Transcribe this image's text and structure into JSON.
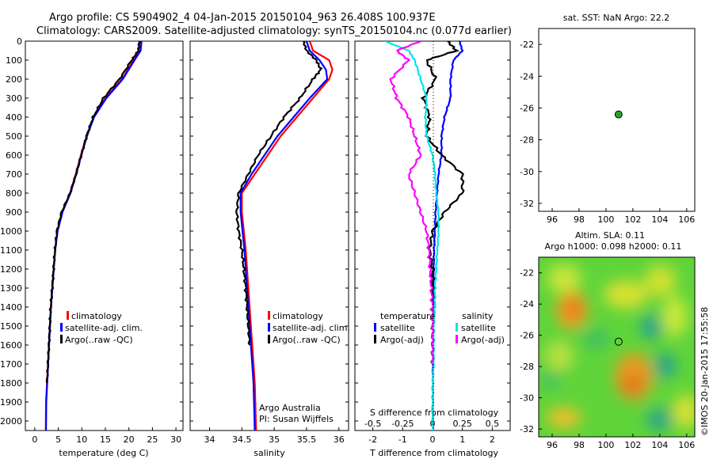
{
  "header": {
    "line1": "Argo profile: CS 5904902_4 04-Jan-2015 20150104_963 26.408S 100.937E",
    "line2": "Climatology: CARS2009. Satellite-adjusted climatology: synTS_20150104.nc (0.077d earlier)"
  },
  "depth_axis": {
    "ticks": [
      "0",
      "100",
      "200",
      "300",
      "400",
      "500",
      "600",
      "700",
      "800",
      "900",
      "1000",
      "1100",
      "1200",
      "1300",
      "1400",
      "1500",
      "1600",
      "1700",
      "1800",
      "1900",
      "2000"
    ]
  },
  "panels": {
    "temp": {
      "xlabel": "temperature (deg C)",
      "xticks": [
        "0",
        "5",
        "10",
        "15",
        "20",
        "25",
        "30"
      ],
      "legend": [
        "climatology",
        "satellite-adj. clim.",
        "Argo(..raw -QC)"
      ]
    },
    "sal": {
      "xlabel": "salinity",
      "xticks": [
        "34",
        "34.5",
        "35",
        "35.5",
        "36"
      ],
      "legend": [
        "climatology",
        "satellite-adj. clim.",
        "Argo(..raw -QC)"
      ],
      "credit1": "Argo Australia",
      "credit2": "PI: Susan Wijffels"
    },
    "diff": {
      "xlabel_top": "S difference from climatology",
      "xticks_top": [
        "-0.5",
        "-0.25",
        "0",
        "0.25",
        "0.5"
      ],
      "xlabel_bottom": "T difference from climatology",
      "xticks_bottom": [
        "-2",
        "-1",
        "0",
        "1",
        "2"
      ],
      "legend_temp_title": "temperature",
      "legend_sal_title": "salinity",
      "legend_temp": [
        "satellite",
        "Argo(-adj)"
      ],
      "legend_sal": [
        "satellite",
        "Argo(-adj)"
      ]
    },
    "map1": {
      "title": "sat. SST: NaN Argo: 22.2",
      "yticks": [
        "-22",
        "-24",
        "-26",
        "-28",
        "-30",
        "-32"
      ],
      "xticks": [
        "96",
        "98",
        "100",
        "102",
        "104",
        "106"
      ]
    },
    "map2": {
      "title1": "Altim. SLA: 0.11",
      "title2": "Argo h1000: 0.098 h2000: 0.11",
      "yticks": [
        "-22",
        "-24",
        "-26",
        "-28",
        "-30",
        "-32"
      ],
      "xticks": [
        "96",
        "98",
        "100",
        "102",
        "104",
        "106"
      ]
    }
  },
  "side_stamp": "©IMOS 20-Jan-2015 17:55:58",
  "colors": {
    "climatology": "#ff0000",
    "satellite_adj": "#0000ff",
    "argo": "#000000",
    "sal_satellite": "#00e5e5",
    "sal_argo": "#ff00ff",
    "argo_marker": "#22aa22"
  },
  "chart_data": [
    {
      "type": "line",
      "title": "",
      "xlabel": "temperature (deg C)",
      "ylabel": "",
      "xlim": [
        -2,
        31.5
      ],
      "ylim": [
        2050,
        0
      ],
      "series": [
        {
          "name": "climatology",
          "x": [
            22.5,
            22.3,
            21.0,
            18.5,
            15.0,
            12.5,
            11.0,
            9.8,
            8.7,
            7.5,
            5.8,
            4.8,
            4.3,
            4.0,
            3.7,
            3.4,
            3.2,
            3.0,
            2.8,
            2.6,
            2.4,
            2.35
          ],
          "y": [
            0,
            50,
            100,
            200,
            300,
            400,
            500,
            600,
            700,
            800,
            900,
            1000,
            1100,
            1200,
            1300,
            1400,
            1500,
            1600,
            1700,
            1800,
            1900,
            2050
          ]
        },
        {
          "name": "satellite-adj. clim.",
          "x": [
            22.7,
            22.5,
            21.2,
            18.7,
            15.2,
            12.6,
            11.1,
            9.9,
            8.8,
            7.6,
            5.9,
            4.85,
            4.35,
            4.05,
            3.75,
            3.45,
            3.25,
            3.05,
            2.85,
            2.65,
            2.45,
            2.4
          ],
          "y": [
            0,
            50,
            100,
            200,
            300,
            400,
            500,
            600,
            700,
            800,
            900,
            1000,
            1100,
            1200,
            1300,
            1400,
            1500,
            1600,
            1700,
            1800,
            1900,
            2050
          ]
        },
        {
          "name": "Argo(..raw -QC)",
          "x": [
            22.2,
            22.0,
            20.6,
            18.0,
            14.6,
            12.4,
            11.0,
            9.9,
            8.8,
            7.5,
            5.7,
            4.7,
            4.3,
            4.0,
            3.7,
            3.4,
            3.2,
            3.0,
            2.8,
            2.6
          ],
          "y": [
            0,
            50,
            100,
            200,
            300,
            400,
            500,
            600,
            700,
            800,
            900,
            1000,
            1100,
            1200,
            1300,
            1400,
            1500,
            1600,
            1700,
            1800
          ]
        }
      ]
    },
    {
      "type": "line",
      "title": "",
      "xlabel": "salinity",
      "ylabel": "",
      "xlim": [
        33.7,
        36.15
      ],
      "ylim": [
        2050,
        0
      ],
      "series": [
        {
          "name": "climatology",
          "x": [
            35.55,
            35.6,
            35.85,
            35.9,
            35.85,
            35.6,
            35.35,
            35.1,
            34.9,
            34.7,
            34.5,
            34.5,
            34.53,
            34.56,
            34.58,
            34.6,
            34.62,
            34.64,
            34.66,
            34.68,
            34.7,
            34.72
          ],
          "y": [
            0,
            50,
            100,
            150,
            200,
            300,
            400,
            500,
            600,
            700,
            800,
            900,
            1000,
            1100,
            1200,
            1300,
            1400,
            1500,
            1600,
            1700,
            1800,
            2050
          ]
        },
        {
          "name": "satellite-adj. clim.",
          "x": [
            35.5,
            35.55,
            35.7,
            35.8,
            35.82,
            35.55,
            35.3,
            35.05,
            34.85,
            34.65,
            34.48,
            34.48,
            34.51,
            34.54,
            34.56,
            34.58,
            34.6,
            34.62,
            34.64,
            34.66,
            34.68,
            34.7
          ],
          "y": [
            0,
            50,
            100,
            150,
            200,
            300,
            400,
            500,
            600,
            700,
            800,
            900,
            1000,
            1100,
            1200,
            1300,
            1400,
            1500,
            1600,
            1700,
            1800,
            2050
          ]
        },
        {
          "name": "Argo(..raw -QC)",
          "x": [
            35.45,
            35.5,
            35.65,
            35.72,
            35.6,
            35.4,
            35.15,
            34.95,
            34.75,
            34.6,
            34.45,
            34.42,
            34.45,
            34.5,
            34.53,
            34.56,
            34.58,
            34.6,
            34.62
          ],
          "y": [
            0,
            50,
            100,
            150,
            200,
            300,
            400,
            500,
            600,
            700,
            800,
            900,
            1000,
            1100,
            1200,
            1300,
            1400,
            1500,
            1600
          ]
        }
      ]
    },
    {
      "type": "line",
      "title": "",
      "xlabel": "T difference from climatology",
      "ylabel": "",
      "xlim": [
        -2.6,
        2.6
      ],
      "ylim": [
        2050,
        0
      ],
      "series": [
        {
          "name": "temperature satellite",
          "x": [
            0.9,
            1.0,
            0.7,
            0.6,
            0.6,
            0.4,
            0.3,
            0.3,
            0.2,
            0.15,
            0.1,
            0.08,
            0.05,
            0.04,
            0.03,
            0.02,
            0.02,
            0.01,
            0.01,
            0.01,
            0.01,
            0.01
          ],
          "y": [
            0,
            50,
            100,
            200,
            300,
            400,
            500,
            600,
            700,
            800,
            900,
            1000,
            1100,
            1200,
            1300,
            1400,
            1500,
            1600,
            1700,
            1800,
            1900,
            2050
          ]
        },
        {
          "name": "temperature Argo(-adj)",
          "x": [
            0.5,
            0.8,
            -0.2,
            0.1,
            -0.3,
            -0.1,
            -0.2,
            0.3,
            1.0,
            1.0,
            0.4,
            0.0,
            -0.1,
            0.0,
            0.0,
            0.0,
            0.0,
            0.0,
            0.0
          ],
          "y": [
            0,
            50,
            100,
            200,
            300,
            400,
            500,
            600,
            700,
            800,
            900,
            1000,
            1100,
            1200,
            1300,
            1400,
            1500,
            1600,
            1700
          ]
        },
        {
          "name": "salinity satellite",
          "x": [
            -0.4,
            -0.2,
            -0.15,
            -0.1,
            -0.05,
            -0.06,
            -0.05,
            0.0,
            0.02,
            0.03,
            0.05,
            0.05,
            0.04,
            0.03,
            0.02,
            0.02,
            0.01,
            0.01,
            0.01,
            0.0,
            0.0,
            0.0
          ],
          "y": [
            0,
            50,
            100,
            200,
            300,
            400,
            500,
            600,
            700,
            800,
            900,
            1000,
            1100,
            1200,
            1300,
            1400,
            1500,
            1600,
            1700,
            1800,
            1900,
            2050
          ]
        },
        {
          "name": "salinity Argo(-adj)",
          "x": [
            -0.1,
            -0.3,
            -0.2,
            -0.35,
            -0.3,
            -0.2,
            -0.15,
            -0.1,
            -0.2,
            -0.15,
            -0.1,
            -0.05,
            -0.03,
            -0.02,
            -0.01,
            0.0,
            0.0,
            0.0,
            0.0
          ],
          "y": [
            0,
            50,
            100,
            200,
            300,
            400,
            500,
            600,
            700,
            800,
            900,
            1000,
            1100,
            1200,
            1300,
            1400,
            1500,
            1600,
            1700
          ]
        }
      ]
    },
    {
      "type": "scatter",
      "title": "sat. SST: NaN Argo: 22.2",
      "xlim": [
        95,
        106.6
      ],
      "ylim": [
        -32.5,
        -21
      ],
      "x": [
        100.937
      ],
      "y": [
        -26.408
      ]
    },
    {
      "type": "heatmap",
      "title": "Altim. SLA: 0.11",
      "xlim": [
        95,
        106.6
      ],
      "ylim": [
        -32.5,
        -21
      ],
      "marker": {
        "x": 100.937,
        "y": -26.408
      }
    }
  ]
}
